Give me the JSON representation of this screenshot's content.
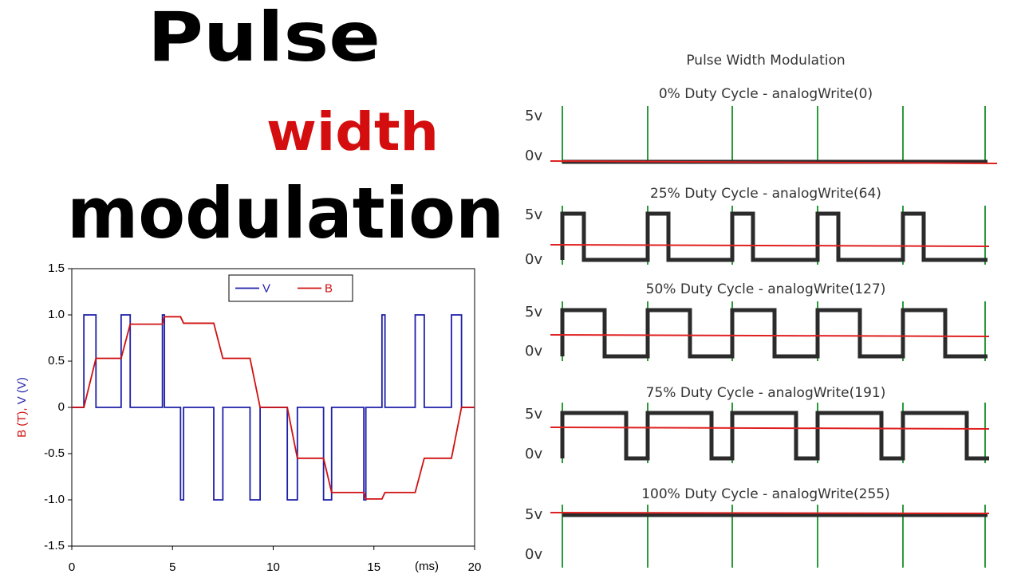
{
  "header": {
    "line1": "Pulse",
    "line2": "width",
    "line3": "modulation"
  },
  "chart_data": {
    "type": "line",
    "y_label_parts": [
      "B (T),",
      "V (V)"
    ],
    "x_label": "(ms)",
    "xlim": [
      0,
      20
    ],
    "xticks": [
      0,
      5,
      10,
      15,
      20
    ],
    "ylim": [
      -1.5,
      1.5
    ],
    "yticks": [
      1.5,
      {
        "value": 1.0,
        "label": "1.0"
      },
      0.5,
      0,
      -0.5,
      {
        "value": -1.0,
        "label": "-1.0"
      },
      -1.5
    ],
    "legend": "top",
    "series": [
      {
        "name": "V",
        "color": "#1f1fa8",
        "x": [
          0,
          0.6,
          0.6,
          1.2,
          1.2,
          2.45,
          2.45,
          2.9,
          2.9,
          4.5,
          4.5,
          4.6,
          4.6,
          5.4,
          5.4,
          5.55,
          5.55,
          7.05,
          7.05,
          7.5,
          7.5,
          8.85,
          8.85,
          9.35,
          9.35,
          10.7,
          10.7,
          11.2,
          11.2,
          12.5,
          12.5,
          12.9,
          12.9,
          14.5,
          14.5,
          14.6,
          14.6,
          15.4,
          15.4,
          15.55,
          15.55,
          17.05,
          17.05,
          17.5,
          17.5,
          18.85,
          18.85,
          19.35,
          19.35,
          20
        ],
        "values": [
          0,
          0,
          1,
          1,
          0,
          0,
          1,
          1,
          0,
          0,
          1,
          1,
          0,
          0,
          -1,
          -1,
          0,
          0,
          -1,
          -1,
          0,
          0,
          -1,
          -1,
          0,
          0,
          -1,
          -1,
          0,
          0,
          -1,
          -1,
          0,
          0,
          -1,
          -1,
          0,
          0,
          1,
          1,
          0,
          0,
          1,
          1,
          0,
          0,
          1,
          1,
          0,
          0
        ]
      },
      {
        "name": "B",
        "color": "#d01010",
        "x": [
          0,
          0.6,
          1.2,
          2.45,
          2.9,
          4.5,
          4.6,
          5.4,
          5.55,
          7.05,
          7.5,
          8.85,
          9.35,
          10.7,
          11.2,
          12.5,
          12.9,
          14.5,
          14.6,
          15.4,
          15.55,
          17.05,
          17.5,
          18.85,
          19.35,
          20
        ],
        "values": [
          0,
          0,
          0.53,
          0.53,
          0.9,
          0.9,
          0.98,
          0.98,
          0.91,
          0.91,
          0.53,
          0.53,
          0,
          0,
          -0.55,
          -0.55,
          -0.92,
          -0.92,
          -0.99,
          -0.99,
          -0.92,
          -0.92,
          -0.55,
          -0.55,
          0,
          0
        ]
      }
    ]
  },
  "pwm": {
    "title": "Pulse Width Modulation",
    "panels": [
      {
        "title": "0% Duty Cycle - analogWrite(0)",
        "high": "5v",
        "low": "0v"
      },
      {
        "title": "25% Duty Cycle - analogWrite(64)",
        "high": "5v",
        "low": "0v"
      },
      {
        "title": "50% Duty Cycle - analogWrite(127)",
        "high": "5v",
        "low": "0v"
      },
      {
        "title": "75% Duty Cycle - analogWrite(191)",
        "high": "5v",
        "low": "0v"
      },
      {
        "title": "100% Duty Cycle - analogWrite(255)",
        "high": "5v",
        "low": "0v"
      }
    ]
  }
}
